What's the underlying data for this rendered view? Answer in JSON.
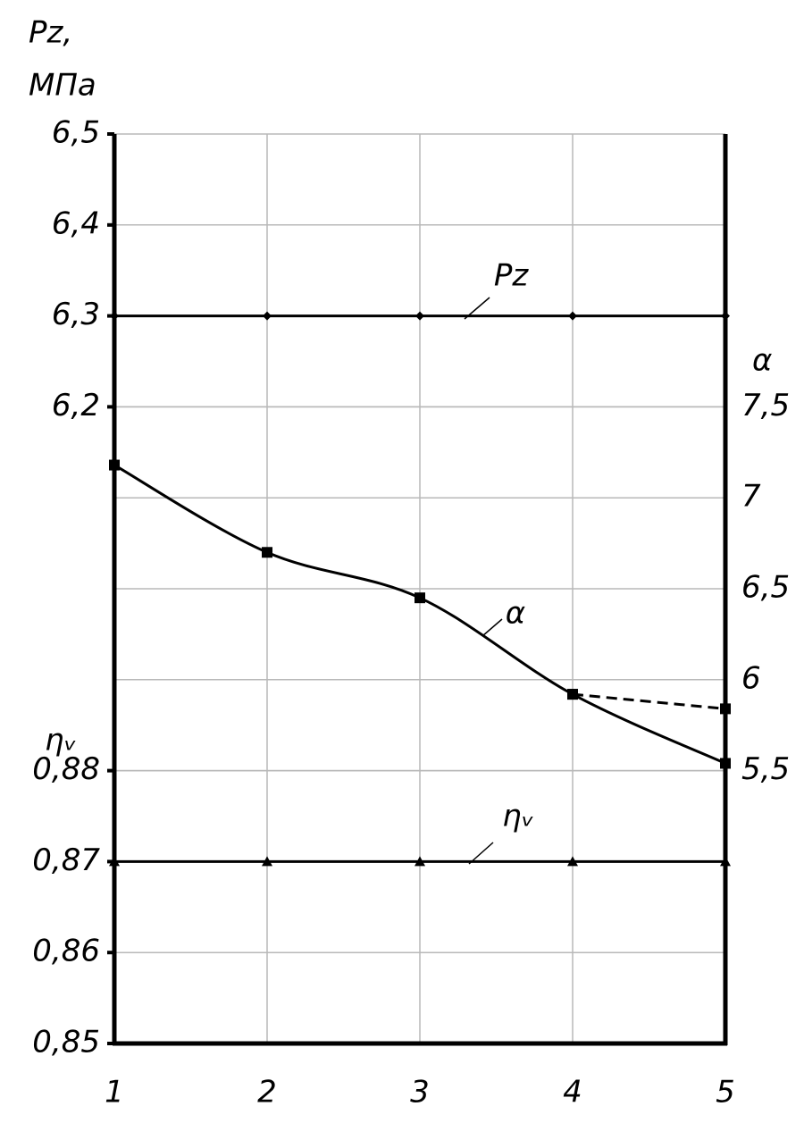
{
  "chart_data": {
    "type": "line",
    "ylabel": [
      "Pz,",
      "МПа"
    ],
    "y2label": "α",
    "y3label": "ηᵥ",
    "x": [
      1,
      2,
      3,
      4,
      5
    ],
    "xlim": [
      1,
      5
    ],
    "xticks": [
      1,
      2,
      3,
      4,
      5
    ],
    "ylim": [
      5.5,
      6.5
    ],
    "yticks": [
      {
        "value": 6.2,
        "label": "6,2"
      },
      {
        "value": 6.3,
        "label": "6,3"
      },
      {
        "value": 6.4,
        "label": "6,4"
      },
      {
        "value": 6.5,
        "label": "6,5"
      }
    ],
    "y2lim": [
      4,
      9
    ],
    "y2ticks": [
      {
        "value": 5.5,
        "label": "5,5"
      },
      6,
      {
        "value": 6.5,
        "label": "6,5"
      },
      7,
      {
        "value": 7.5,
        "label": "7,5"
      }
    ],
    "y3lim": [
      0.85,
      0.95
    ],
    "y3ticks": [
      {
        "value": 0.85,
        "label": "0,85"
      },
      {
        "value": 0.86,
        "label": "0,86"
      },
      {
        "value": 0.87,
        "label": "0,87"
      },
      {
        "value": 0.88,
        "label": "0,88"
      }
    ],
    "grid": true,
    "series": [
      {
        "name": "Pz",
        "color": "#000000",
        "marker": "diamond",
        "values": [
          6.3,
          6.3,
          6.3,
          6.3,
          6.3
        ]
      },
      {
        "name": "α",
        "color": "#000000",
        "axis": "y2",
        "marker": "square",
        "smooth": true,
        "values": [
          7.18,
          6.7,
          6.45,
          5.92,
          5.54
        ]
      },
      {
        "color": "#000000",
        "axis": "y2",
        "marker": "square",
        "smooth": true,
        "dashed": true,
        "values": [
          null,
          null,
          null,
          5.92,
          5.84
        ]
      },
      {
        "name": "ηᵥ",
        "color": "#000000",
        "axis": "y3",
        "marker": "triangle",
        "values": [
          0.87,
          0.87,
          0.87,
          0.87,
          0.87
        ]
      }
    ]
  }
}
